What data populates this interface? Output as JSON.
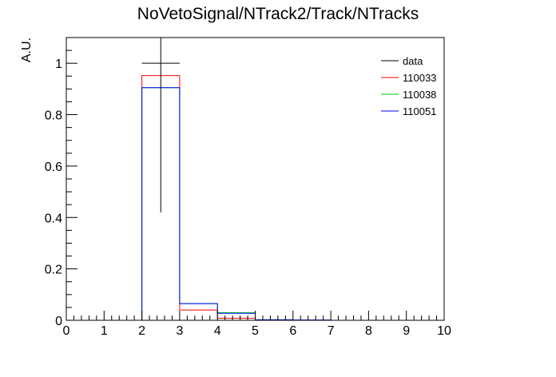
{
  "chart_data": {
    "type": "histogram",
    "title": "NoVetoSignal/NTrack2/Track/NTracks",
    "xlabel": "",
    "ylabel": "A.U.",
    "xlim": [
      0,
      10
    ],
    "ylim": [
      0,
      1.1
    ],
    "x_ticks": [
      "0",
      "1",
      "2",
      "3",
      "4",
      "5",
      "6",
      "7",
      "8",
      "9",
      "10"
    ],
    "y_ticks": [
      "0",
      "0.2",
      "0.4",
      "0.6",
      "0.8",
      "1"
    ],
    "bin_edges": [
      0,
      1,
      2,
      3,
      4,
      5,
      6,
      7,
      8,
      9,
      10
    ],
    "legend_position": "top-right",
    "series": [
      {
        "name": "data",
        "style": "points",
        "color": "#000000",
        "x": [
          2.5
        ],
        "y": [
          1.0
        ],
        "y_err_low": [
          0.58
        ],
        "y_err_high": [
          0.1
        ]
      },
      {
        "name": "110033",
        "style": "step",
        "color": "#ff0000",
        "values": [
          0,
          0,
          0.952,
          0.04,
          0.008,
          0,
          0,
          0,
          0,
          0
        ]
      },
      {
        "name": "110038",
        "style": "step",
        "color": "#00cc00",
        "values": [
          0,
          0,
          0.905,
          0.065,
          0.03,
          0.002,
          0,
          0,
          0,
          0
        ]
      },
      {
        "name": "110051",
        "style": "step",
        "color": "#0000ff",
        "values": [
          0,
          0,
          0.905,
          0.065,
          0.027,
          0.002,
          0.001,
          0,
          0,
          0
        ]
      }
    ]
  }
}
